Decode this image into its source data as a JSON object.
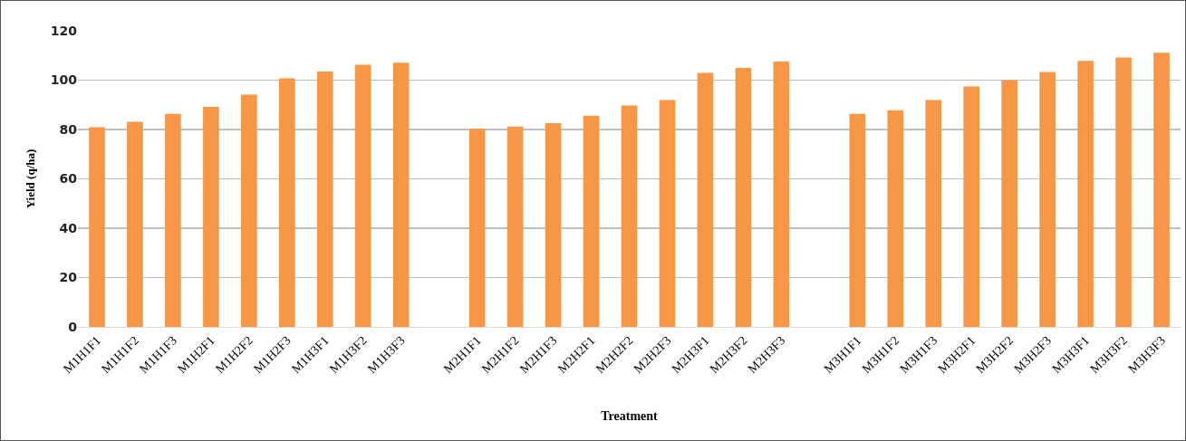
{
  "chart_data": {
    "type": "bar",
    "xlabel": "Treatment",
    "ylabel": "Yield (q/ha)",
    "categories": [
      "M1H1F1",
      "M1H1F2",
      "M1H1F3",
      "M1H2F1",
      "M1H2F2",
      "M1H2F3",
      "M1H3F1",
      "M1H3F2",
      "M1H3F3",
      null,
      "M2H1F1",
      "M2H1F2",
      "M2H1F3",
      "M2H2F1",
      "M2H2F2",
      "M2H2F3",
      "M2H3F1",
      "M2H3F2",
      "M2H3F3",
      null,
      "M3H1F1",
      "M3H1F2",
      "M3H1F3",
      "M3H2F1",
      "M3H2F2",
      "M3H2F3",
      "M3H3F1",
      "M3H3F2",
      "M3H3F3"
    ],
    "values": [
      80.9,
      83.1,
      86.3,
      89.2,
      94.1,
      100.7,
      103.5,
      106.2,
      107.1,
      null,
      80.3,
      81.2,
      82.6,
      85.6,
      89.7,
      91.9,
      102.9,
      105.0,
      107.5,
      null,
      86.3,
      87.8,
      91.9,
      97.4,
      100.0,
      103.3,
      107.8,
      109.2,
      111.1
    ],
    "color": "#f79646",
    "ylim": [
      0,
      120
    ],
    "yticks": [
      0,
      20,
      40,
      60,
      80,
      100,
      120
    ],
    "grid": "y"
  }
}
